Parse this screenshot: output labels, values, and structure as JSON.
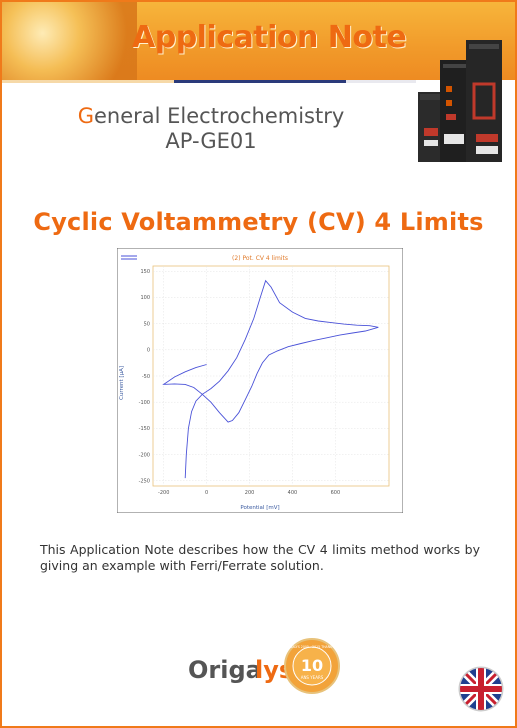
{
  "header": {
    "title": "Application Note"
  },
  "category": {
    "first_letter": "G",
    "rest": "eneral Electrochemistry",
    "code": "AP-GE01"
  },
  "document_title": "Cyclic Voltammetry (CV) 4 Limits",
  "description": "This Application Note describes how the CV 4 limits method works by giving an example with Ferri/Ferrate solution.",
  "logo": {
    "brand_prefix": "Origa",
    "brand_suffix": "lys",
    "badge_years": "10",
    "badge_text": "ANS YEARS",
    "badge_ring": "ORIGALYS 2005 - 2015 THANK YOU"
  },
  "flag_icon": "uk-flag-icon",
  "colors": {
    "accent": "#ee6a12",
    "banner": "#f19a2a",
    "curve": "#4a52d8",
    "chart_label": "#e07a2a"
  },
  "chart_data": {
    "type": "line",
    "title": "(2) Pot. CV 4 limits",
    "xlabel": "Potential [mV]",
    "ylabel": "Current [µA]",
    "xlim": [
      -250,
      850
    ],
    "ylim": [
      -260,
      160
    ],
    "x_ticks": [
      -200,
      0,
      200,
      400,
      600
    ],
    "y_ticks": [
      150,
      100,
      50,
      0,
      -50,
      -100,
      -150,
      -200,
      -250
    ],
    "x_tick_labels": [
      "-200",
      "0",
      "200",
      "400",
      "600"
    ],
    "y_tick_labels": [
      "150",
      "100",
      "50",
      "0",
      "-50",
      "-100",
      "-150",
      "-200",
      "-250"
    ],
    "grid": true,
    "series": [
      {
        "x": [
          -100,
          -95,
          -85,
          -70,
          -50,
          -20,
          20,
          60,
          100,
          140,
          180,
          220,
          250,
          275,
          300,
          340,
          400,
          460,
          520,
          580,
          640,
          700,
          760,
          800
        ],
        "y": [
          -245,
          -200,
          -150,
          -118,
          -98,
          -85,
          -74,
          -60,
          -40,
          -15,
          20,
          60,
          100,
          132,
          120,
          90,
          72,
          60,
          55,
          52,
          49,
          47,
          46,
          43
        ]
      },
      {
        "x": [
          800,
          740,
          680,
          620,
          560,
          500,
          440,
          380,
          330,
          290,
          260,
          235,
          210,
          180,
          150,
          120,
          100,
          60,
          20,
          -20,
          -60,
          -100,
          -150,
          -200,
          -150,
          -100,
          -50,
          0
        ],
        "y": [
          43,
          36,
          32,
          28,
          23,
          18,
          12,
          6,
          -2,
          -10,
          -25,
          -45,
          -70,
          -95,
          -120,
          -135,
          -138,
          -120,
          -100,
          -85,
          -72,
          -66,
          -65,
          -66,
          -52,
          -42,
          -34,
          -28
        ]
      }
    ]
  }
}
